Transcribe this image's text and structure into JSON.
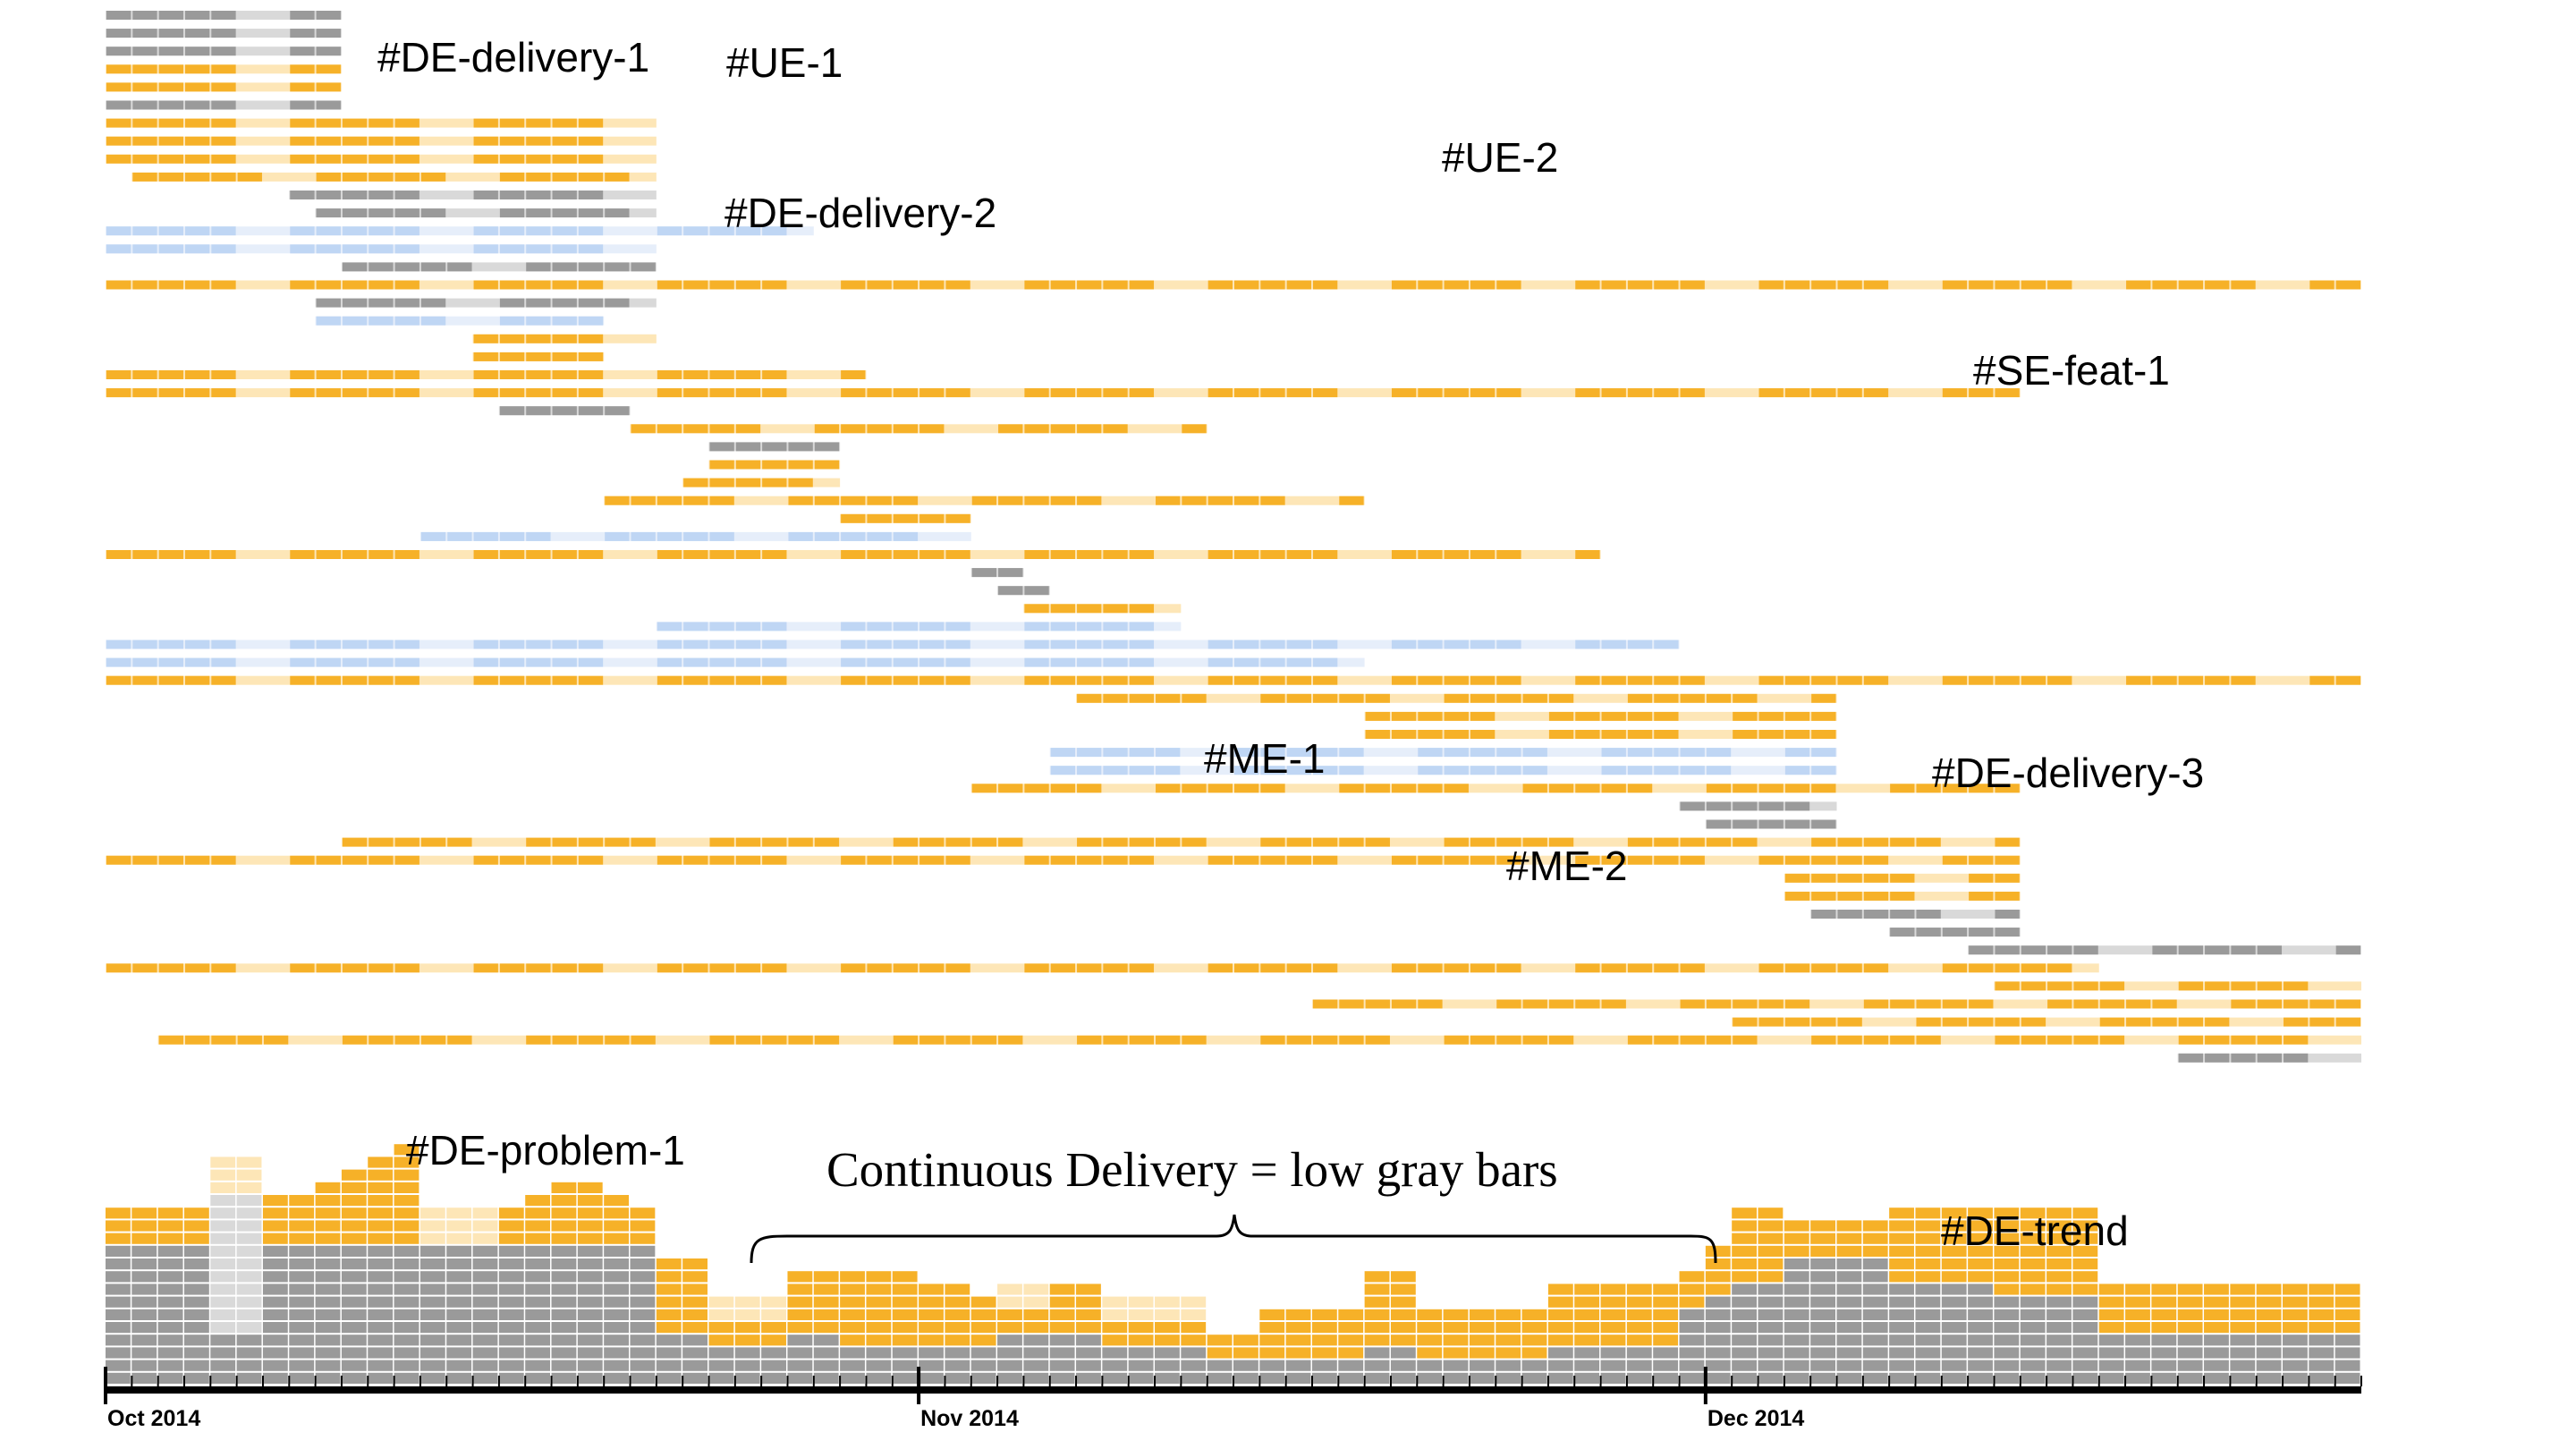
{
  "chart_data": {
    "type": "timeline",
    "x_axis": {
      "start": "2014-10-01",
      "end": "2014-12-26",
      "tick_labels": [
        "Oct 2014",
        "Nov 2014",
        "Dec 2014"
      ],
      "tick_dates": [
        "2014-10-01",
        "2014-11-01",
        "2014-12-01"
      ]
    },
    "colors": {
      "done": "#9a9a9a",
      "done_light": "#d9d9d9",
      "in_progress": "#f6b128",
      "in_progress_light": "#fde6b7",
      "planned": "#bfd6f4",
      "planned_light": "#e6eefa",
      "event": "#e0457b",
      "marker_blue": "#3c4aa0",
      "marker_red": "#e0302a",
      "bracket": "#000000"
    },
    "annotations": [
      {
        "id": "de-delivery-1",
        "text": "#DE-delivery-1"
      },
      {
        "id": "ue-1",
        "text": "#UE-1"
      },
      {
        "id": "ue-2",
        "text": "#UE-2"
      },
      {
        "id": "de-delivery-2",
        "text": "#DE-delivery-2"
      },
      {
        "id": "se-feat-1",
        "text": "#SE-feat-1"
      },
      {
        "id": "me-1",
        "text": "#ME-1"
      },
      {
        "id": "de-delivery-3",
        "text": "#DE-delivery-3"
      },
      {
        "id": "me-2",
        "text": "#ME-2"
      },
      {
        "id": "de-problem-1",
        "text": "#DE-problem-1"
      },
      {
        "id": "de-trend",
        "text": "#DE-trend"
      }
    ],
    "callout": "Continuous Delivery = low gray bars",
    "rows": [
      {
        "segments": [
          [
            "2014-10-01",
            "2014-10-10",
            "done"
          ]
        ]
      },
      {
        "segments": [
          [
            "2014-10-01",
            "2014-10-10",
            "done"
          ]
        ]
      },
      {
        "segments": [
          [
            "2014-10-01",
            "2014-10-10",
            "done"
          ]
        ]
      },
      {
        "segments": [
          [
            "2014-10-01",
            "2014-10-10",
            "in_progress"
          ]
        ]
      },
      {
        "segments": [
          [
            "2014-10-01",
            "2014-10-10",
            "in_progress"
          ]
        ]
      },
      {
        "segments": [
          [
            "2014-10-01",
            "2014-10-10",
            "done"
          ]
        ]
      },
      {
        "segments": [
          [
            "2014-10-01",
            "2014-10-22",
            "in_progress"
          ]
        ]
      },
      {
        "segments": [
          [
            "2014-10-01",
            "2014-10-22",
            "in_progress"
          ]
        ]
      },
      {
        "segments": [
          [
            "2014-10-01",
            "2014-10-22",
            "in_progress"
          ]
        ]
      },
      {
        "segments": [
          [
            "2014-10-02",
            "2014-10-22",
            "in_progress"
          ]
        ]
      },
      {
        "segments": [
          [
            "2014-10-08",
            "2014-10-22",
            "done"
          ]
        ]
      },
      {
        "segments": [
          [
            "2014-10-09",
            "2014-10-22",
            "done"
          ]
        ]
      },
      {
        "segments": [
          [
            "2014-10-01",
            "2014-10-28",
            "planned"
          ]
        ]
      },
      {
        "segments": [
          [
            "2014-10-01",
            "2014-10-22",
            "planned"
          ]
        ]
      },
      {
        "segments": [
          [
            "2014-10-10",
            "2014-10-22",
            "done"
          ]
        ]
      },
      {
        "segments": [
          [
            "2014-10-01",
            "2014-12-26",
            "in_progress"
          ]
        ]
      },
      {
        "segments": [
          [
            "2014-10-09",
            "2014-10-22",
            "done"
          ]
        ]
      },
      {
        "segments": [
          [
            "2014-10-09",
            "2014-10-20",
            "planned"
          ]
        ]
      },
      {
        "segments": [
          [
            "2014-10-15",
            "2014-10-22",
            "in_progress"
          ]
        ]
      },
      {
        "segments": [
          [
            "2014-10-15",
            "2014-10-20",
            "in_progress"
          ]
        ]
      },
      {
        "segments": [
          [
            "2014-10-01",
            "2014-10-30",
            "in_progress"
          ]
        ]
      },
      {
        "segments": [
          [
            "2014-10-01",
            "2014-12-13",
            "in_progress"
          ]
        ]
      },
      {
        "segments": [
          [
            "2014-10-16",
            "2014-10-21",
            "done"
          ]
        ]
      },
      {
        "segments": [
          [
            "2014-10-21",
            "2014-11-12",
            "in_progress"
          ]
        ]
      },
      {
        "segments": [
          [
            "2014-10-24",
            "2014-10-29",
            "done"
          ]
        ]
      },
      {
        "segments": [
          [
            "2014-10-24",
            "2014-10-29",
            "in_progress"
          ]
        ]
      },
      {
        "segments": [
          [
            "2014-10-23",
            "2014-10-29",
            "in_progress"
          ]
        ]
      },
      {
        "segments": [
          [
            "2014-10-20",
            "2014-11-18",
            "in_progress"
          ]
        ]
      },
      {
        "segments": [
          [
            "2014-10-29",
            "2014-11-03",
            "in_progress"
          ]
        ]
      },
      {
        "segments": [
          [
            "2014-10-13",
            "2014-11-03",
            "planned"
          ]
        ]
      },
      {
        "segments": [
          [
            "2014-10-01",
            "2014-11-27",
            "in_progress"
          ]
        ]
      },
      {
        "segments": [
          [
            "2014-11-03",
            "2014-11-05",
            "done"
          ]
        ]
      },
      {
        "segments": [
          [
            "2014-11-04",
            "2014-11-06",
            "done"
          ]
        ]
      },
      {
        "segments": [
          [
            "2014-11-05",
            "2014-11-11",
            "in_progress"
          ]
        ]
      },
      {
        "segments": [
          [
            "2014-10-22",
            "2014-11-11",
            "planned"
          ]
        ]
      },
      {
        "segments": [
          [
            "2014-10-01",
            "2014-11-30",
            "planned"
          ]
        ]
      },
      {
        "segments": [
          [
            "2014-10-01",
            "2014-11-18",
            "planned"
          ]
        ]
      },
      {
        "segments": [
          [
            "2014-10-01",
            "2014-12-26",
            "in_progress"
          ]
        ]
      },
      {
        "segments": [
          [
            "2014-11-07",
            "2014-12-06",
            "in_progress"
          ]
        ]
      },
      {
        "segments": [
          [
            "2014-11-18",
            "2014-12-06",
            "in_progress"
          ]
        ]
      },
      {
        "segments": [
          [
            "2014-11-18",
            "2014-12-06",
            "in_progress"
          ]
        ]
      },
      {
        "segments": [
          [
            "2014-11-06",
            "2014-12-06",
            "planned"
          ]
        ]
      },
      {
        "segments": [
          [
            "2014-11-06",
            "2014-12-06",
            "planned"
          ]
        ]
      },
      {
        "segments": [
          [
            "2014-11-03",
            "2014-12-13",
            "in_progress"
          ]
        ]
      },
      {
        "segments": [
          [
            "2014-11-30",
            "2014-12-06",
            "done"
          ]
        ]
      },
      {
        "segments": [
          [
            "2014-12-01",
            "2014-12-06",
            "done"
          ]
        ]
      },
      {
        "segments": [
          [
            "2014-10-10",
            "2014-12-13",
            "in_progress"
          ]
        ]
      },
      {
        "segments": [
          [
            "2014-10-01",
            "2014-12-13",
            "in_progress"
          ]
        ]
      },
      {
        "segments": [
          [
            "2014-12-04",
            "2014-12-13",
            "in_progress"
          ]
        ]
      },
      {
        "segments": [
          [
            "2014-12-04",
            "2014-12-13",
            "in_progress"
          ]
        ]
      },
      {
        "segments": [
          [
            "2014-12-05",
            "2014-12-13",
            "done"
          ]
        ]
      },
      {
        "segments": [
          [
            "2014-12-08",
            "2014-12-13",
            "done"
          ]
        ]
      },
      {
        "segments": [
          [
            "2014-12-11",
            "2014-12-26",
            "done"
          ]
        ]
      },
      {
        "segments": [
          [
            "2014-10-01",
            "2014-12-16",
            "in_progress"
          ]
        ]
      },
      {
        "segments": [
          [
            "2014-12-12",
            "2014-12-26",
            "in_progress"
          ]
        ]
      },
      {
        "segments": [
          [
            "2014-11-16",
            "2014-12-26",
            "in_progress"
          ]
        ]
      },
      {
        "segments": [
          [
            "2014-12-02",
            "2014-12-26",
            "in_progress"
          ]
        ]
      },
      {
        "segments": [
          [
            "2014-10-03",
            "2014-12-26",
            "in_progress"
          ]
        ]
      },
      {
        "segments": [
          [
            "2014-12-19",
            "2014-12-26",
            "done"
          ]
        ]
      }
    ],
    "daily_bars": {
      "gray": [
        11,
        11,
        11,
        11,
        4,
        4,
        11,
        11,
        11,
        11,
        11,
        11,
        11,
        11,
        11,
        11,
        11,
        11,
        11,
        11,
        11,
        4,
        4,
        3,
        3,
        3,
        4,
        4,
        3,
        3,
        3,
        3,
        3,
        3,
        4,
        4,
        4,
        4,
        3,
        3,
        3,
        3,
        2,
        2,
        2,
        2,
        2,
        2,
        3,
        3,
        2,
        2,
        2,
        2,
        2,
        3,
        3,
        3,
        3,
        3,
        6,
        7,
        8,
        8,
        10,
        10,
        10,
        10,
        8,
        8,
        8,
        8,
        7,
        7,
        7,
        7,
        4,
        4,
        4,
        4,
        4,
        4,
        4,
        4,
        4,
        4
      ],
      "gray_light": [
        0,
        0,
        0,
        0,
        11,
        11,
        0,
        0,
        0,
        0,
        0,
        0,
        0,
        0,
        0,
        0,
        0,
        0,
        0,
        0,
        0,
        0,
        0,
        0,
        0,
        0,
        0,
        0,
        0,
        0,
        0,
        0,
        0,
        0,
        0,
        0,
        0,
        0,
        0,
        0,
        0,
        0,
        0,
        0,
        0,
        0,
        0,
        0,
        0,
        0,
        0,
        0,
        0,
        0,
        0,
        0,
        0,
        0,
        0,
        0,
        0,
        0,
        0,
        0,
        0,
        0,
        0,
        0,
        0,
        0,
        0,
        0,
        0,
        0,
        0,
        0,
        0,
        0,
        0,
        0,
        0,
        0,
        0,
        0,
        0,
        0
      ],
      "orange": [
        3,
        3,
        3,
        3,
        0,
        0,
        4,
        4,
        5,
        6,
        7,
        8,
        0,
        0,
        0,
        3,
        4,
        5,
        5,
        4,
        3,
        6,
        6,
        2,
        2,
        2,
        5,
        5,
        6,
        6,
        6,
        5,
        5,
        4,
        2,
        2,
        4,
        4,
        2,
        2,
        2,
        2,
        2,
        2,
        4,
        4,
        4,
        4,
        6,
        6,
        4,
        4,
        4,
        4,
        4,
        5,
        5,
        5,
        5,
        5,
        3,
        4,
        6,
        6,
        3,
        3,
        3,
        3,
        6,
        6,
        6,
        6,
        7,
        7,
        7,
        7,
        4,
        4,
        4,
        4,
        4,
        4,
        4,
        4,
        4,
        4
      ],
      "orange_light": [
        0,
        0,
        0,
        0,
        3,
        3,
        0,
        0,
        0,
        0,
        0,
        0,
        3,
        3,
        3,
        0,
        0,
        0,
        0,
        0,
        0,
        0,
        0,
        2,
        2,
        2,
        0,
        0,
        0,
        0,
        0,
        0,
        0,
        0,
        2,
        2,
        0,
        0,
        2,
        2,
        2,
        2,
        0,
        0,
        0,
        0,
        0,
        0,
        0,
        0,
        0,
        0,
        0,
        0,
        0,
        0,
        0,
        0,
        0,
        0,
        0,
        0,
        0,
        0,
        0,
        0,
        0,
        0,
        0,
        0,
        0,
        0,
        0,
        0,
        0,
        0,
        0,
        0,
        0,
        0,
        0,
        0,
        0,
        0,
        0,
        0
      ]
    }
  }
}
